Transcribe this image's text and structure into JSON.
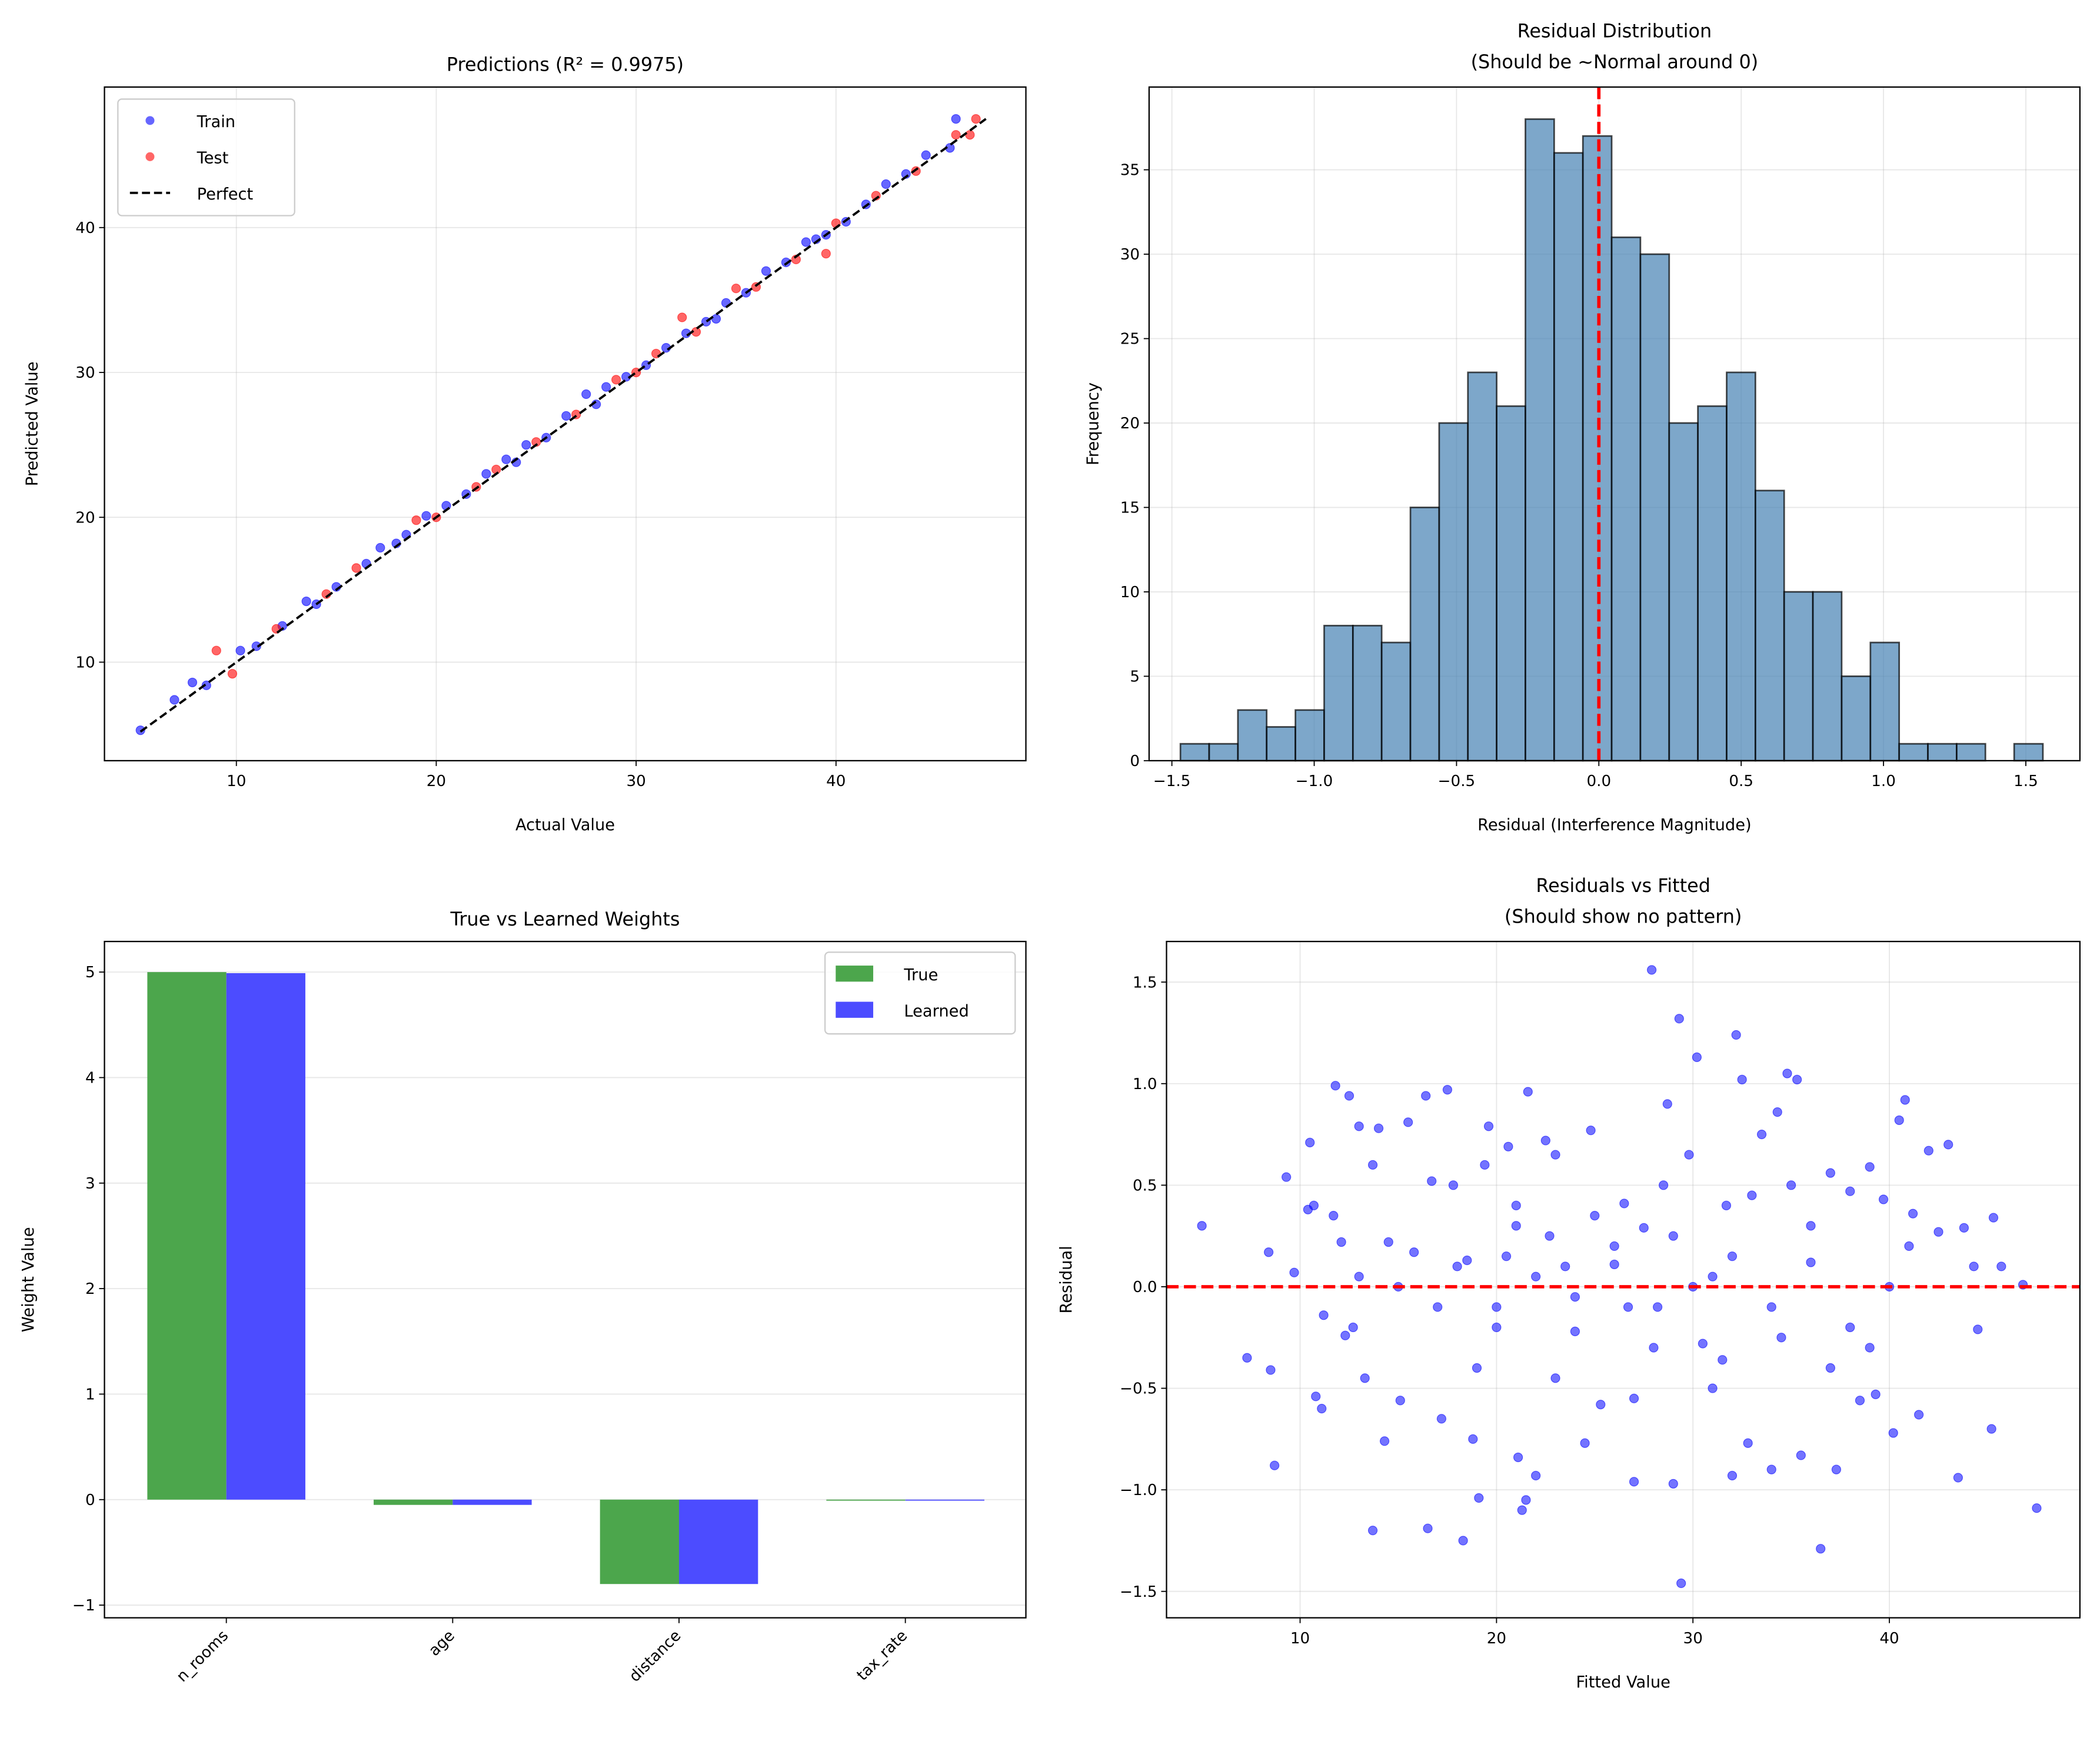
{
  "chart_data": [
    {
      "type": "scatter",
      "title": "Predictions (R² = 0.9975)",
      "xlabel": "Actual Value",
      "ylabel": "Predicted Value",
      "xlim": [
        3.4,
        49.5
      ],
      "ylim": [
        3.2,
        49.7
      ],
      "xticks": [
        10,
        20,
        30,
        40
      ],
      "yticks": [
        10,
        20,
        30,
        40
      ],
      "grid": true,
      "legend": "upper-left",
      "series": [
        {
          "name": "Train",
          "color": "#0000ff",
          "points": [
            [
              5.2,
              5.3
            ],
            [
              6.9,
              7.4
            ],
            [
              7.8,
              8.6
            ],
            [
              8.5,
              8.4
            ],
            [
              10.2,
              10.8
            ],
            [
              11,
              11.1
            ],
            [
              12.3,
              12.5
            ],
            [
              13.5,
              14.2
            ],
            [
              15,
              15.2
            ],
            [
              16.5,
              16.8
            ],
            [
              17.2,
              17.9
            ],
            [
              18.5,
              18.8
            ],
            [
              19.5,
              20.1
            ],
            [
              20.5,
              20.8
            ],
            [
              21.5,
              21.6
            ],
            [
              22.5,
              23
            ],
            [
              23.5,
              24
            ],
            [
              24.5,
              25
            ],
            [
              25.5,
              25.5
            ],
            [
              26.5,
              27
            ],
            [
              27.5,
              28.5
            ],
            [
              28.5,
              29
            ],
            [
              29.5,
              29.7
            ],
            [
              30.5,
              30.5
            ],
            [
              31.5,
              31.7
            ],
            [
              32.5,
              32.7
            ],
            [
              33.5,
              33.5
            ],
            [
              34.5,
              34.8
            ],
            [
              35.5,
              35.5
            ],
            [
              36.5,
              37
            ],
            [
              37.5,
              37.6
            ],
            [
              38.5,
              39
            ],
            [
              39.5,
              39.5
            ],
            [
              40.5,
              40.4
            ],
            [
              41.5,
              41.6
            ],
            [
              42.5,
              43
            ],
            [
              43.5,
              43.7
            ],
            [
              44.5,
              45
            ],
            [
              45.7,
              45.5
            ],
            [
              46,
              47.5
            ],
            [
              14,
              14
            ],
            [
              18,
              18.2
            ],
            [
              24,
              23.8
            ],
            [
              28,
              27.8
            ],
            [
              34,
              33.7
            ],
            [
              39,
              39.2
            ]
          ]
        },
        {
          "name": "Test",
          "color": "#ff0000",
          "points": [
            [
              9,
              10.8
            ],
            [
              9.8,
              9.2
            ],
            [
              12,
              12.3
            ],
            [
              14.5,
              14.7
            ],
            [
              16,
              16.5
            ],
            [
              19,
              19.8
            ],
            [
              20,
              20
            ],
            [
              22,
              22.1
            ],
            [
              23,
              23.3
            ],
            [
              25,
              25.2
            ],
            [
              27,
              27.1
            ],
            [
              29,
              29.5
            ],
            [
              30,
              30
            ],
            [
              31,
              31.3
            ],
            [
              32.3,
              33.8
            ],
            [
              33,
              32.8
            ],
            [
              35,
              35.8
            ],
            [
              36,
              35.9
            ],
            [
              38,
              37.8
            ],
            [
              39.5,
              38.2
            ],
            [
              40,
              40.3
            ],
            [
              42,
              42.2
            ],
            [
              44,
              43.9
            ],
            [
              46,
              46.4
            ],
            [
              47,
              47.5
            ],
            [
              46.7,
              46.4
            ]
          ]
        },
        {
          "name": "Perfect",
          "type": "line",
          "color": "#000000",
          "points": [
            [
              5.2,
              5.2
            ],
            [
              47.5,
              47.5
            ]
          ]
        }
      ]
    },
    {
      "type": "bar",
      "title": "Residual Distribution\n(Should be ~Normal around 0)",
      "title_lines": [
        "Residual Distribution",
        "(Should be ~Normal around 0)"
      ],
      "xlabel": "Residual (Interference Magnitude)",
      "ylabel": "Frequency",
      "xlim": [
        -1.58,
        1.69
      ],
      "ylim": [
        0,
        39.9
      ],
      "xticks": [
        -1.5,
        -1.0,
        -0.5,
        0.0,
        0.5,
        1.0,
        1.5
      ],
      "xtick_labels": [
        "−1.5",
        "−1.0",
        "−0.5",
        "0.0",
        "0.5",
        "1.0",
        "1.5"
      ],
      "yticks": [
        0,
        5,
        10,
        15,
        20,
        25,
        30,
        35
      ],
      "grid": true,
      "bin_start": -1.47,
      "bin_width": 0.101,
      "counts": [
        1,
        1,
        3,
        2,
        3,
        8,
        8,
        7,
        15,
        20,
        23,
        21,
        38,
        36,
        37,
        31,
        30,
        20,
        21,
        23,
        16,
        10,
        10,
        5,
        7,
        1,
        1,
        1,
        0,
        1
      ],
      "bar_color": "#4682b4",
      "reference_line": {
        "x": 0,
        "color": "#ff0000",
        "style": "dashed"
      }
    },
    {
      "type": "bar",
      "title": "True vs Learned Weights",
      "xlabel": "",
      "ylabel": "Weight Value",
      "ylim": [
        -1.12,
        5.29
      ],
      "yticks": [
        -1,
        0,
        1,
        2,
        3,
        4,
        5
      ],
      "ytick_labels": [
        "−1",
        "0",
        "1",
        "2",
        "3",
        "4",
        "5"
      ],
      "grid": true,
      "legend": "upper-right",
      "categories": [
        "n_rooms",
        "age",
        "distance",
        "tax_rate"
      ],
      "series": [
        {
          "name": "True",
          "color": "#4ca64c",
          "values": [
            5.0,
            -0.05,
            -0.8,
            -0.01
          ]
        },
        {
          "name": "Learned",
          "color": "#4c4cff",
          "values": [
            4.99,
            -0.05,
            -0.8,
            -0.01
          ]
        }
      ]
    },
    {
      "type": "scatter",
      "title": "Residuals vs Fitted\n(Should show no pattern)",
      "title_lines": [
        "Residuals vs Fitted",
        "(Should show no pattern)"
      ],
      "xlabel": "Fitted Value",
      "ylabel": "Residual",
      "xlim": [
        3.2,
        49.7
      ],
      "ylim": [
        -1.63,
        1.7
      ],
      "xticks": [
        10,
        20,
        30,
        40
      ],
      "yticks": [
        -1.5,
        -1.0,
        -0.5,
        0.0,
        0.5,
        1.0,
        1.5
      ],
      "ytick_labels": [
        "−1.5",
        "−1.0",
        "−0.5",
        "0.0",
        "0.5",
        "1.0",
        "1.5"
      ],
      "grid": true,
      "color": "#0000ff",
      "reference_line": {
        "y": 0,
        "color": "#ff0000",
        "style": "dashed"
      },
      "points": [
        [
          5,
          0.3
        ],
        [
          7.3,
          -0.35
        ],
        [
          8.4,
          0.17
        ],
        [
          8.5,
          -0.41
        ],
        [
          8.7,
          -0.88
        ],
        [
          9.3,
          0.54
        ],
        [
          9.7,
          0.07
        ],
        [
          10.4,
          0.38
        ],
        [
          10.5,
          0.71
        ],
        [
          10.7,
          0.4
        ],
        [
          10.8,
          -0.54
        ],
        [
          11.1,
          -0.6
        ],
        [
          11.2,
          -0.14
        ],
        [
          11.8,
          0.99
        ],
        [
          11.7,
          0.35
        ],
        [
          12.1,
          0.22
        ],
        [
          12.5,
          0.94
        ],
        [
          12.3,
          -0.24
        ],
        [
          12.7,
          -0.2
        ],
        [
          13,
          0.79
        ],
        [
          13.3,
          -0.45
        ],
        [
          13.7,
          -1.2
        ],
        [
          13.7,
          0.6
        ],
        [
          14,
          0.78
        ],
        [
          14.3,
          -0.76
        ],
        [
          14.5,
          0.22
        ],
        [
          15.1,
          -0.56
        ],
        [
          15.5,
          0.81
        ],
        [
          15.8,
          0.17
        ],
        [
          16.4,
          0.94
        ],
        [
          16.5,
          -1.19
        ],
        [
          16.7,
          0.52
        ],
        [
          17.2,
          -0.65
        ],
        [
          17.5,
          0.97
        ],
        [
          17.8,
          0.5
        ],
        [
          18.3,
          -1.25
        ],
        [
          18.5,
          0.13
        ],
        [
          18.8,
          -0.75
        ],
        [
          19.1,
          -1.04
        ],
        [
          19.4,
          0.6
        ],
        [
          19.6,
          0.79
        ],
        [
          20,
          -0.1
        ],
        [
          20.6,
          0.69
        ],
        [
          21,
          0.4
        ],
        [
          21.1,
          -0.84
        ],
        [
          21.3,
          -1.1
        ],
        [
          21.5,
          -1.05
        ],
        [
          21.6,
          0.96
        ],
        [
          22,
          -0.93
        ],
        [
          22.5,
          0.72
        ],
        [
          23,
          0.65
        ],
        [
          23.5,
          0.1
        ],
        [
          24,
          -0.22
        ],
        [
          24.5,
          -0.77
        ],
        [
          24.8,
          0.77
        ],
        [
          25.3,
          -0.58
        ],
        [
          26,
          0.11
        ],
        [
          26.5,
          0.41
        ],
        [
          27,
          -0.96
        ],
        [
          27.5,
          0.29
        ],
        [
          27.9,
          1.56
        ],
        [
          28.2,
          -0.1
        ],
        [
          28.7,
          0.9
        ],
        [
          29,
          -0.97
        ],
        [
          29.3,
          1.32
        ],
        [
          29.4,
          -1.46
        ],
        [
          29.8,
          0.65
        ],
        [
          30.2,
          1.13
        ],
        [
          30.5,
          -0.28
        ],
        [
          31,
          0.05
        ],
        [
          31.5,
          -0.36
        ],
        [
          32,
          -0.93
        ],
        [
          32.2,
          1.24
        ],
        [
          32.5,
          1.02
        ],
        [
          32.8,
          -0.77
        ],
        [
          33.5,
          0.75
        ],
        [
          34,
          -0.9
        ],
        [
          34.3,
          0.86
        ],
        [
          34.8,
          1.05
        ],
        [
          35.3,
          1.02
        ],
        [
          35.5,
          -0.83
        ],
        [
          36,
          0.12
        ],
        [
          36.5,
          -1.29
        ],
        [
          37,
          0.56
        ],
        [
          37.3,
          -0.9
        ],
        [
          38,
          0.47
        ],
        [
          38.5,
          -0.56
        ],
        [
          39,
          0.59
        ],
        [
          39.3,
          -0.53
        ],
        [
          39.7,
          0.43
        ],
        [
          40.2,
          -0.72
        ],
        [
          40.5,
          0.82
        ],
        [
          40.8,
          0.92
        ],
        [
          41.2,
          0.36
        ],
        [
          41.5,
          -0.63
        ],
        [
          42,
          0.67
        ],
        [
          42.5,
          0.27
        ],
        [
          43,
          0.7
        ],
        [
          43.5,
          -0.94
        ],
        [
          43.8,
          0.29
        ],
        [
          44.3,
          0.1
        ],
        [
          44.5,
          -0.21
        ],
        [
          45.2,
          -0.7
        ],
        [
          45.3,
          0.34
        ],
        [
          45.7,
          0.1
        ],
        [
          46.8,
          0.01
        ],
        [
          47.5,
          -1.09
        ],
        [
          15,
          0
        ],
        [
          18,
          0.1
        ],
        [
          20,
          -0.2
        ],
        [
          22,
          0.05
        ],
        [
          24,
          -0.05
        ],
        [
          26,
          0.2
        ],
        [
          28,
          -0.3
        ],
        [
          30,
          0
        ],
        [
          32,
          0.15
        ],
        [
          34,
          -0.1
        ],
        [
          36,
          0.3
        ],
        [
          38,
          -0.2
        ],
        [
          40,
          0
        ],
        [
          19,
          -0.4
        ],
        [
          25,
          0.35
        ],
        [
          31,
          -0.5
        ],
        [
          35,
          0.5
        ],
        [
          23,
          -0.45
        ],
        [
          27,
          -0.55
        ],
        [
          33,
          0.45
        ],
        [
          37,
          -0.4
        ],
        [
          21,
          0.3
        ],
        [
          29,
          0.25
        ],
        [
          17,
          -0.1
        ],
        [
          13,
          0.05
        ],
        [
          41,
          0.2
        ],
        [
          39,
          -0.3
        ],
        [
          26.7,
          -0.1
        ],
        [
          31.7,
          0.4
        ],
        [
          34.5,
          -0.25
        ],
        [
          22.7,
          0.25
        ],
        [
          20.5,
          0.15
        ],
        [
          28.5,
          0.5
        ]
      ]
    }
  ]
}
